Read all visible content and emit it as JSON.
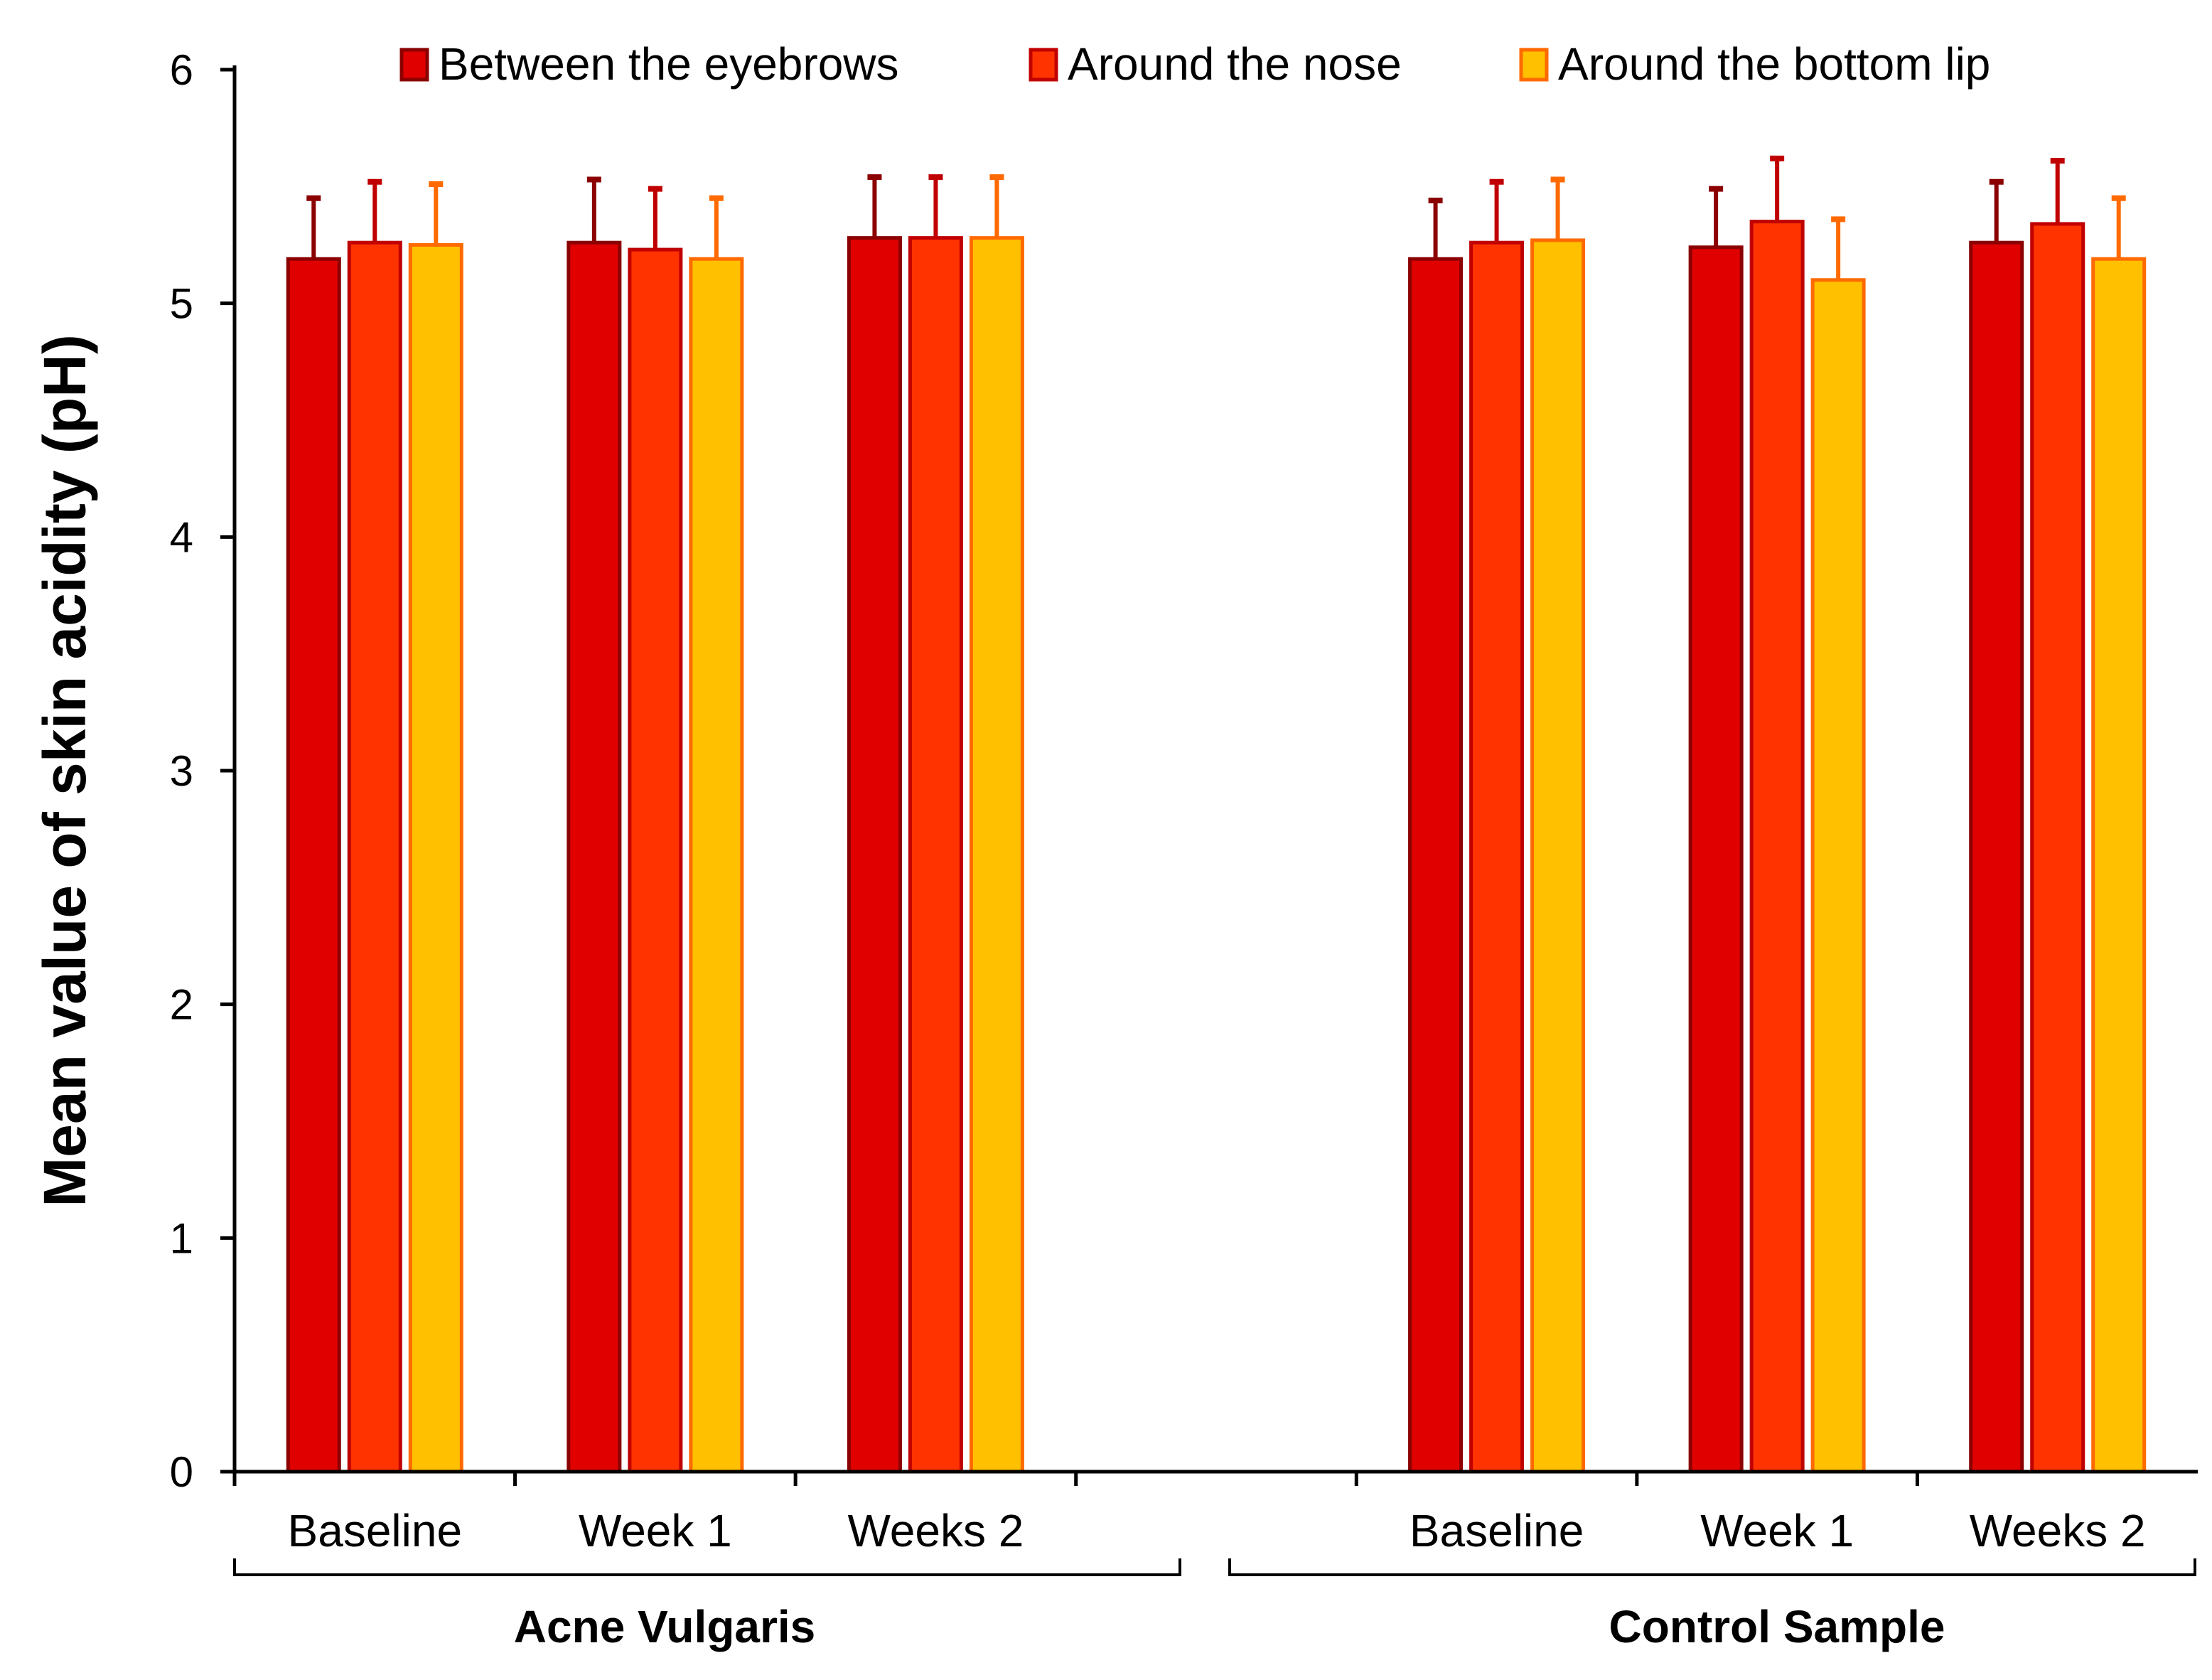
{
  "chart_data": {
    "type": "bar",
    "title": "",
    "xlabel": "",
    "ylabel": "Mean value of skin acidity (pH)",
    "ylim": [
      0,
      6
    ],
    "yticks": [
      0,
      1,
      2,
      3,
      4,
      5,
      6
    ],
    "grid": false,
    "legend_position": "top",
    "groups": [
      {
        "name": "Acne Vulgaris",
        "categories": [
          "Baseline",
          "Week 1",
          "Weeks 2"
        ]
      },
      {
        "name": "Control Sample",
        "categories": [
          "Baseline",
          "Week 1",
          "Weeks 2"
        ]
      }
    ],
    "series": [
      {
        "name": "Between the eyebrows",
        "color": "#E00000",
        "edge_color": "#8B0000",
        "values": [
          5.19,
          5.26,
          5.28,
          5.19,
          5.24,
          5.26
        ],
        "errors": [
          0.26,
          0.27,
          0.26,
          0.25,
          0.25,
          0.26
        ]
      },
      {
        "name": "Around the nose",
        "color": "#FF3300",
        "edge_color": "#C00000",
        "values": [
          5.26,
          5.23,
          5.28,
          5.26,
          5.35,
          5.34
        ],
        "errors": [
          0.26,
          0.26,
          0.26,
          0.26,
          0.27,
          0.27
        ]
      },
      {
        "name": "Around the bottom lip",
        "color": "#FFC000",
        "edge_color": "#FF6A00",
        "values": [
          5.25,
          5.19,
          5.28,
          5.27,
          5.1,
          5.19
        ],
        "errors": [
          0.26,
          0.26,
          0.26,
          0.26,
          0.26,
          0.26
        ]
      }
    ]
  }
}
